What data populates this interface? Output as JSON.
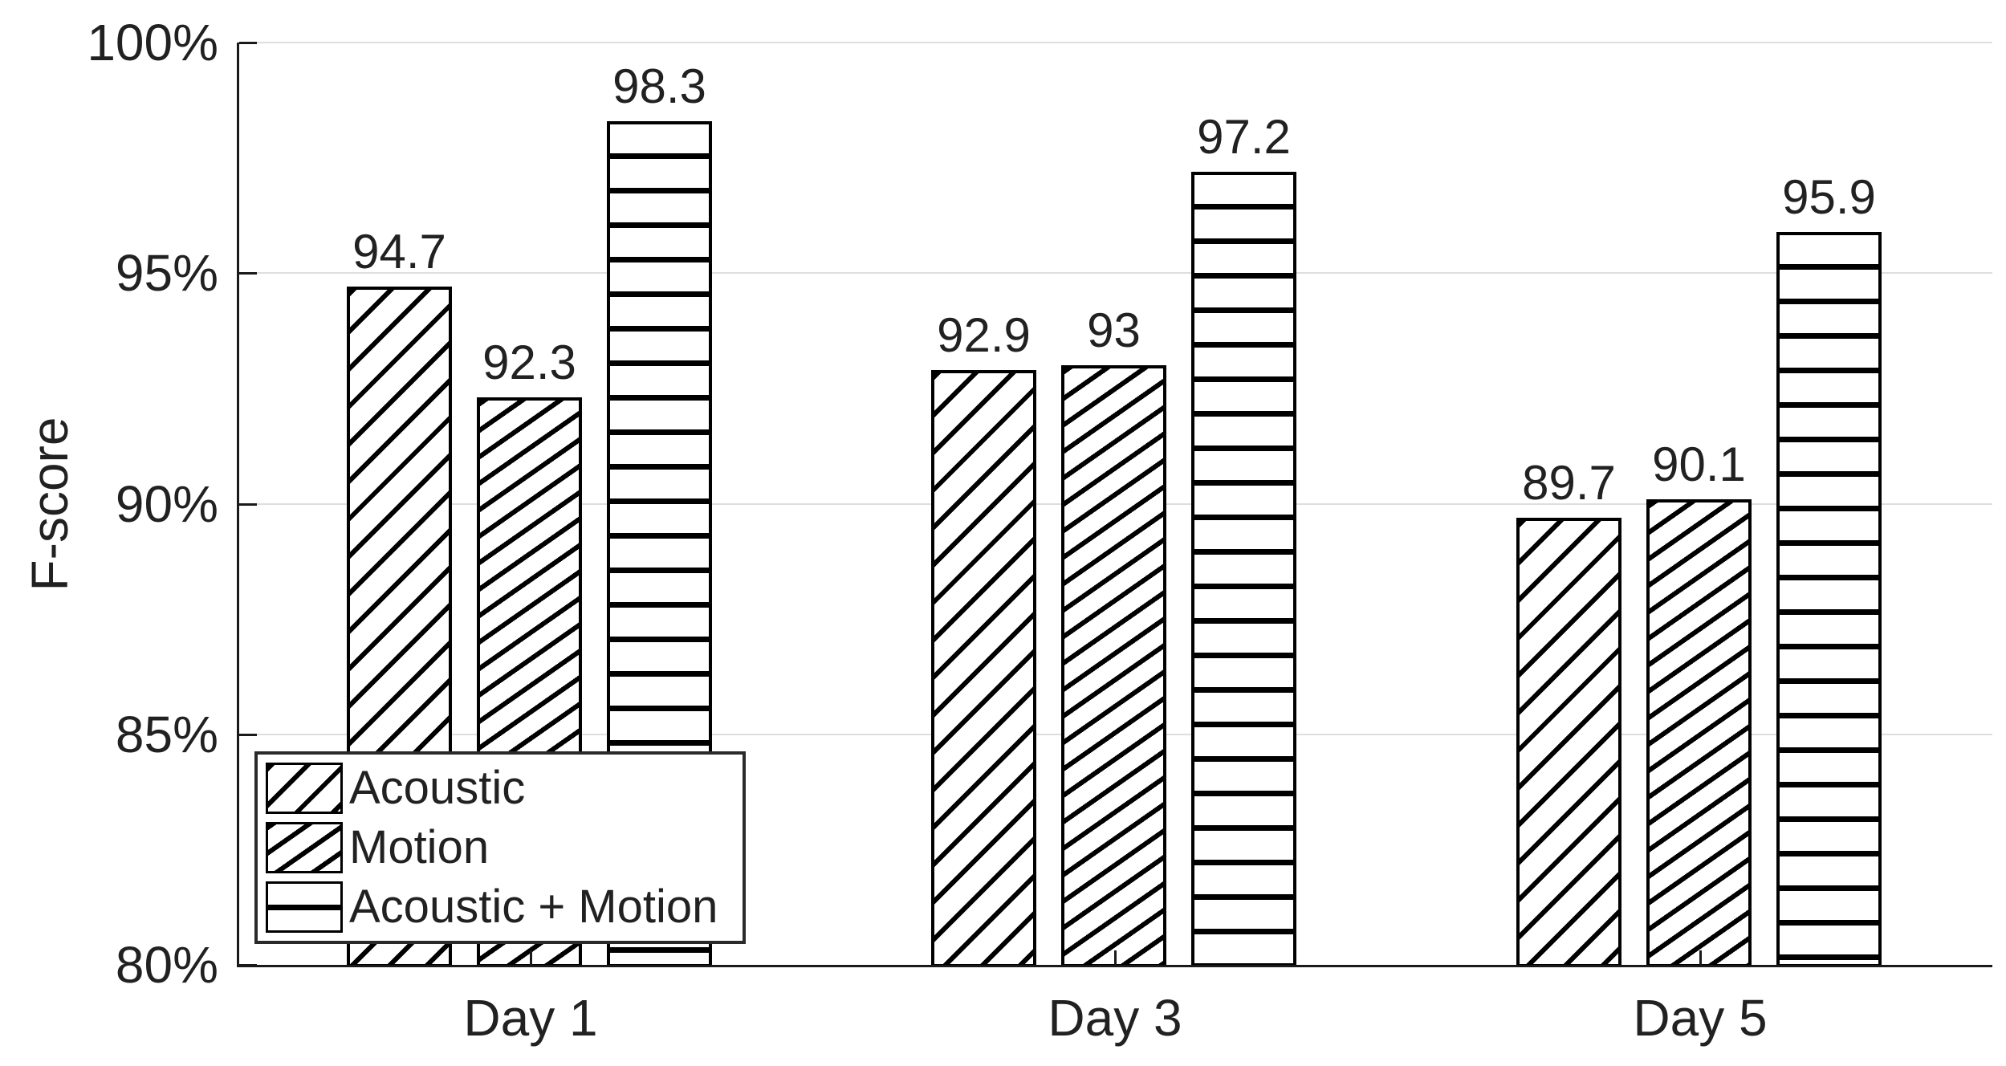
{
  "figure": {
    "ylabel": "F-score"
  },
  "chart_data": {
    "type": "bar",
    "title": "",
    "xlabel": "",
    "ylabel": "F-score",
    "categories": [
      "Day 1",
      "Day 3",
      "Day 5"
    ],
    "series": [
      {
        "name": "Acoustic",
        "pattern": "diagonal-hatch",
        "values": [
          94.7,
          92.9,
          89.7
        ],
        "value_labels": [
          "94.7",
          "92.9",
          "89.7"
        ]
      },
      {
        "name": "Motion",
        "pattern": "diagonal-hatch-steep",
        "values": [
          92.3,
          93,
          90.1
        ],
        "value_labels": [
          "92.3",
          "93",
          "90.1"
        ]
      },
      {
        "name": "Acoustic + Motion",
        "pattern": "horizontal-hatch",
        "values": [
          98.3,
          97.2,
          95.9
        ],
        "value_labels": [
          "98.3",
          "97.2",
          "95.9"
        ]
      }
    ],
    "ylim": [
      80,
      100
    ],
    "ytick_values": [
      100,
      95,
      90,
      85,
      80
    ],
    "ytick_labels": [
      "100%",
      "95%",
      "90%",
      "85%",
      "80%"
    ],
    "grid": "horizontal",
    "legend_position": "bottom-left-inside",
    "bar_fill": "#ffffff",
    "bar_edge": "#000000",
    "grid_color": "#dedede",
    "axis_color": "#1a1a1a",
    "text_color": "#212121"
  }
}
